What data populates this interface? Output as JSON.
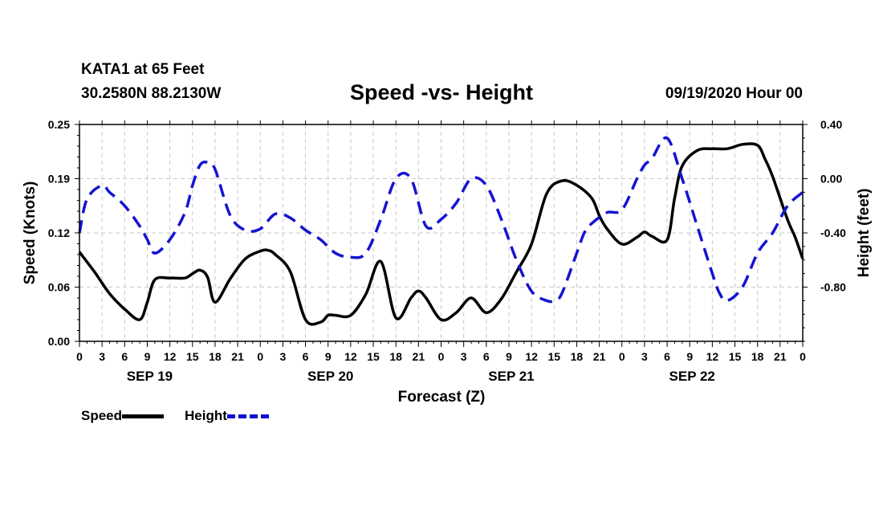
{
  "header": {
    "station": "KATA1 at 65 Feet",
    "coords": "30.2580N 88.2130W",
    "title": "Speed -vs- Height",
    "datetime": "09/19/2020 Hour 00"
  },
  "colors": {
    "speed": "#000000",
    "height": "#1414d2",
    "grid": "#c8c8c8"
  },
  "chart_data": {
    "type": "line",
    "title": "Speed -vs- Height",
    "xlabel": "Forecast (Z)",
    "ylabel": "Speed (Knots)",
    "ylabel_right": "Height (feet)",
    "xlim": [
      0,
      96
    ],
    "ylim": [
      0,
      0.25
    ],
    "ylim_right": [
      -1.2,
      0.4
    ],
    "x_ticks": [
      0,
      3,
      6,
      9,
      12,
      15,
      18,
      21,
      24,
      27,
      30,
      33,
      36,
      39,
      42,
      45,
      48,
      51,
      54,
      57,
      60,
      63,
      66,
      69,
      72,
      75,
      78,
      81,
      84,
      87,
      90,
      93,
      96
    ],
    "x_tick_labels": [
      "0",
      "3",
      "6",
      "9",
      "12",
      "15",
      "18",
      "21",
      "0",
      "3",
      "6",
      "9",
      "12",
      "15",
      "18",
      "21",
      "0",
      "3",
      "6",
      "9",
      "12",
      "15",
      "18",
      "21",
      "0",
      "3",
      "6",
      "9",
      "12",
      "15",
      "18",
      "21",
      "0"
    ],
    "y_ticks": [
      "0.00",
      "0.06",
      "0.12",
      "0.19",
      "0.25"
    ],
    "y_tick_values": [
      0,
      0.0625,
      0.125,
      0.1875,
      0.25
    ],
    "y2_ticks": [
      "0.40",
      "0.00",
      "-0.40",
      "-0.80"
    ],
    "y2_tick_values": [
      0.4,
      0.0,
      -0.4,
      -0.8
    ],
    "date_labels": [
      {
        "x": 9,
        "label": "SEP 19"
      },
      {
        "x": 33,
        "label": "SEP 20"
      },
      {
        "x": 57,
        "label": "SEP 21"
      },
      {
        "x": 81,
        "label": "SEP 22"
      }
    ],
    "grid": true,
    "series": [
      {
        "name": "Speed",
        "axis": "left",
        "style": "solid",
        "x": [
          0,
          2,
          4,
          6,
          8,
          9,
          10,
          12,
          14,
          15,
          16,
          17,
          18,
          20,
          22,
          24,
          25,
          26,
          28,
          30,
          32,
          33,
          34,
          36,
          38,
          40,
          42,
          44,
          45,
          46,
          48,
          50,
          52,
          54,
          56,
          58,
          60,
          62,
          64,
          66,
          68,
          69,
          70,
          72,
          74,
          75,
          76,
          78,
          79,
          80,
          82,
          84,
          86,
          88,
          90,
          91,
          92,
          94,
          95,
          96
        ],
        "values": [
          0.103,
          0.08,
          0.055,
          0.037,
          0.025,
          0.045,
          0.071,
          0.073,
          0.073,
          0.078,
          0.082,
          0.074,
          0.045,
          0.072,
          0.095,
          0.104,
          0.105,
          0.1,
          0.08,
          0.025,
          0.022,
          0.03,
          0.03,
          0.03,
          0.054,
          0.092,
          0.027,
          0.05,
          0.058,
          0.05,
          0.025,
          0.033,
          0.05,
          0.033,
          0.049,
          0.08,
          0.112,
          0.17,
          0.185,
          0.18,
          0.165,
          0.145,
          0.13,
          0.112,
          0.12,
          0.126,
          0.121,
          0.117,
          0.165,
          0.202,
          0.22,
          0.222,
          0.222,
          0.227,
          0.226,
          0.21,
          0.19,
          0.14,
          0.12,
          0.095
        ]
      },
      {
        "name": "Height",
        "axis": "right",
        "style": "dashed",
        "x": [
          0,
          1,
          3,
          4,
          6,
          8,
          9,
          10,
          12,
          14,
          15,
          16,
          17,
          18,
          20,
          22,
          24,
          26,
          28,
          30,
          32,
          34,
          36,
          38,
          40,
          42,
          44,
          46,
          48,
          50,
          52,
          54,
          56,
          58,
          60,
          62,
          63,
          64,
          66,
          67,
          68,
          70,
          72,
          74,
          75,
          76,
          78,
          80,
          82,
          84,
          85,
          86,
          88,
          90,
          92,
          94,
          96
        ],
        "values": [
          -0.4,
          -0.15,
          -0.05,
          -0.1,
          -0.2,
          -0.35,
          -0.45,
          -0.55,
          -0.45,
          -0.25,
          -0.05,
          0.1,
          0.12,
          0.07,
          -0.27,
          -0.38,
          -0.37,
          -0.26,
          -0.29,
          -0.38,
          -0.45,
          -0.55,
          -0.58,
          -0.55,
          -0.3,
          0.0,
          0.0,
          -0.35,
          -0.3,
          -0.18,
          0.0,
          -0.05,
          -0.3,
          -0.6,
          -0.83,
          -0.9,
          -0.9,
          -0.85,
          -0.55,
          -0.4,
          -0.33,
          -0.25,
          -0.23,
          0.0,
          0.1,
          0.15,
          0.3,
          0.0,
          -0.35,
          -0.7,
          -0.85,
          -0.9,
          -0.8,
          -0.55,
          -0.4,
          -0.2,
          -0.1
        ]
      }
    ],
    "legend": [
      "Speed",
      "Height"
    ],
    "legend_position": "bottom-left"
  }
}
